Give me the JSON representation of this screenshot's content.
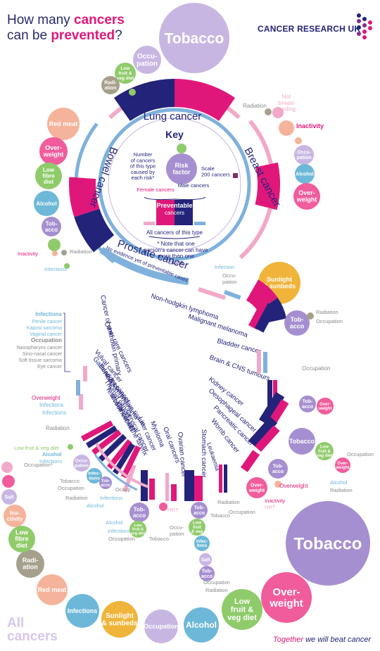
{
  "title": {
    "line1_a": "How many ",
    "line1_b": "cancers",
    "line2_a": "can be ",
    "line2_b": "prevented",
    "line2_c": "?"
  },
  "brand": "CANCER RESEARCH UK",
  "tagline": {
    "a": "Together",
    "b": " we will beat cancer"
  },
  "all_cancers": {
    "line1": "All",
    "line2": "cancers"
  },
  "colors": {
    "navy": "#23237a",
    "pink": "#e0177a",
    "lightpink": "#f2a9c9",
    "lightblue": "#7fb1dc",
    "lavender": "#c8b6e2",
    "purple": "#a58fd0",
    "green": "#8fcb6a",
    "teal": "#6db8d8",
    "yellow": "#f0b43a",
    "salmon": "#f4b39a",
    "pinkmid": "#f05c9c"
  },
  "key": {
    "title": "Key",
    "risk_factor": "Risk factor",
    "number_label": "Number of cancers of this type caused by each risk*",
    "scale": "Scale 200 cancers",
    "female": "Female cancers",
    "male": "Male cancers",
    "preventable": "Preventable cancers",
    "all_of_type": "All cancers of this type",
    "note": "* Note that one person's cancer can have more than one cause"
  },
  "cancers": {
    "lung": "Lung cancer",
    "breast": "Breast cancer",
    "bowel": "Bowel cancer",
    "prostate": "Prostate cancer",
    "prostate_note": "No evidence yet of preventable cases",
    "nhl": "Non-hodgkin lymphoma",
    "melanoma": "Malignant melanoma",
    "bladder": "Bladder cancer",
    "brain": "Brain & CNS tumours",
    "kidney": "Kidney cancer",
    "oeso": "Oesophageal cancer",
    "pancreatic": "Pancreatic cancer",
    "womb": "Womb cancer",
    "leukaemia": "Leukaemia",
    "stomach": "Stomach cancer",
    "ovarian": "Ovarian cancer",
    "oral": "Oral cancers",
    "myeloma": "Myeloma",
    "liver": "Liver cancer",
    "cervical": "Cervical cancer",
    "larynx": "Cancer of the larynx",
    "mesothelioma": "Mesothelioma",
    "testicular": "Testicular cancer",
    "thyroid": "Thyroid cancer",
    "hodgkin": "Hodgkin lymphoma",
    "bone": "Bone & connective tissue",
    "gallbladder": "Gallbladder cancer",
    "vulval": "Vulval cancer",
    "other_rare": "Other rare cancers",
    "unknown_primary": "Cancer of unknown primary"
  },
  "other_rare_list": {
    "infections_head": "Infections",
    "infections": [
      "Penile cancer",
      "Kaposi sarcoma",
      "Vaginal cancer"
    ],
    "occupation_head": "Occupation",
    "occupation": [
      "Nasopharynx cancer",
      "Sino-nasal cancer",
      "Soft tissue sarcoma",
      "Eye cancer"
    ]
  },
  "risks": {
    "tobacco": "Tobacco",
    "occupation": "Occupation",
    "fruit_veg": "Low fruit & veg diet",
    "radiation": "Radiation",
    "red_meat": "Red meat",
    "overweight": "Overweight",
    "fibre": "Low fibre diet",
    "alcohol": "Alcohol",
    "inactivity": "Inactivity",
    "infections": "Infections",
    "not_breastfeeding": "Not breast feeding",
    "sunlight": "Sunlight & sunbeds",
    "salt": "Salt",
    "hrt": "HRT",
    "infection": "Infection"
  },
  "bottom_ring": [
    "Tobacco",
    "Over-weight",
    "Low fruit & veg diet",
    "Alcohol",
    "Occupation",
    "Sunlight & sunbeds",
    "Infections",
    "Red meat",
    "Radiation",
    "Low fibre diet",
    "Inactivity",
    "Salt",
    "HRT",
    "Not breast feeding"
  ]
}
